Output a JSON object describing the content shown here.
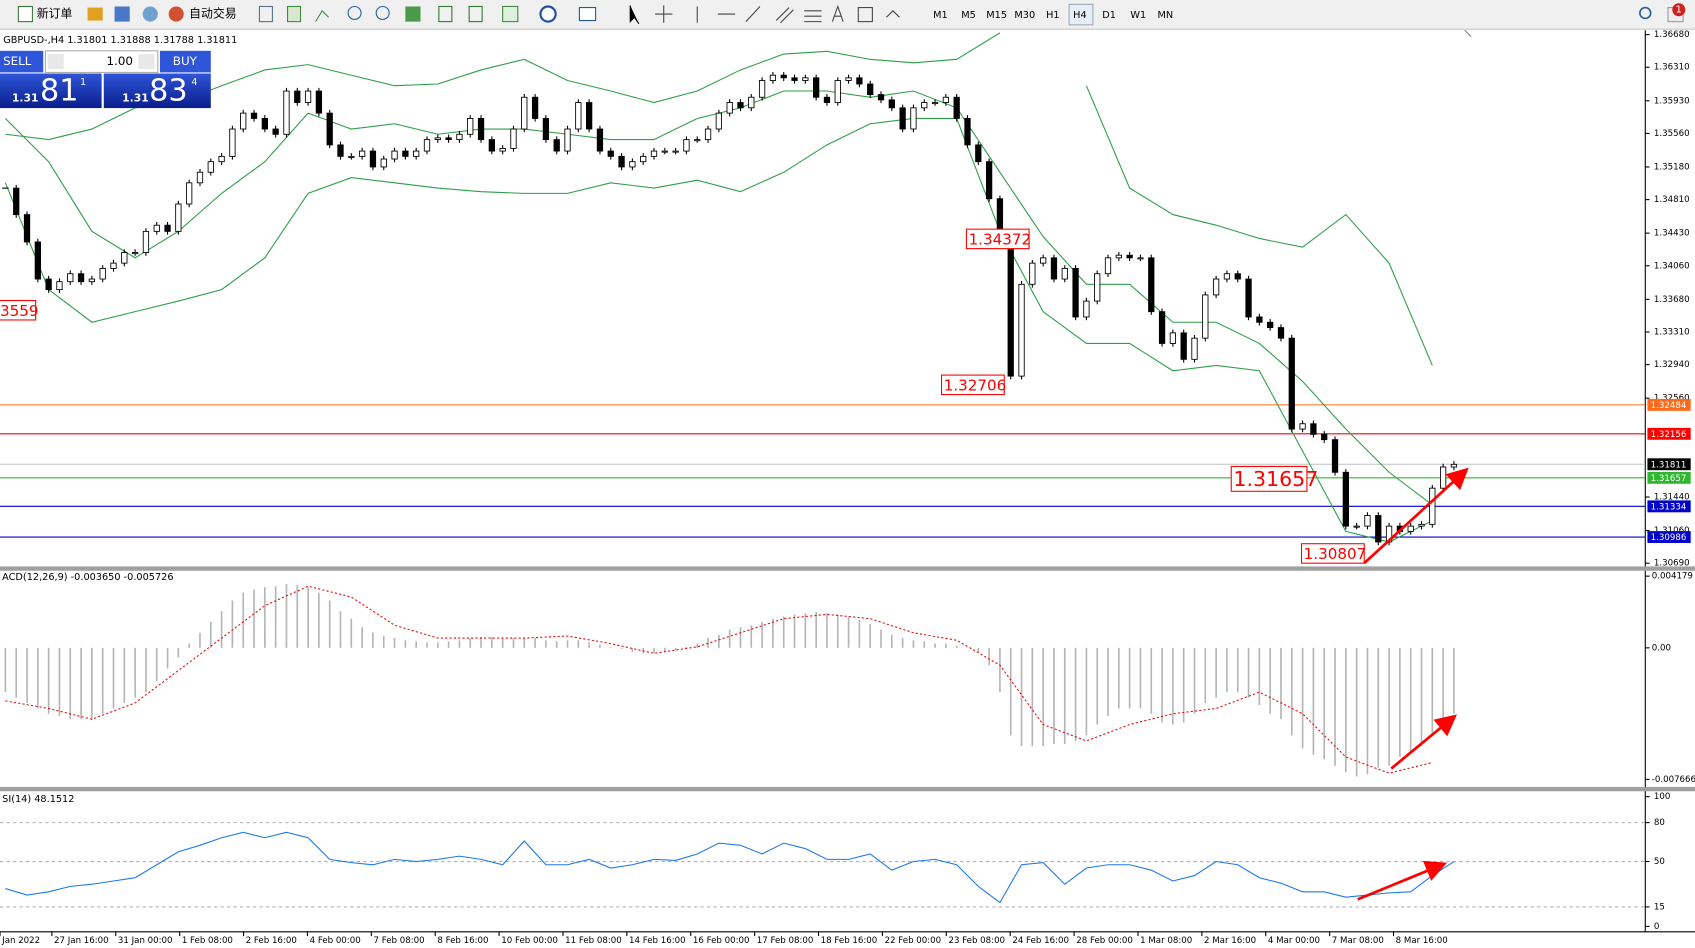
{
  "toolbar": {
    "new_order": "新订单",
    "auto_trade": "自动交易",
    "timeframes": [
      "M1",
      "M5",
      "M15",
      "M30",
      "H1",
      "H4",
      "D1",
      "W1",
      "MN"
    ],
    "notifications": "1"
  },
  "trade_panel": {
    "sell": "SELL",
    "buy": "BUY",
    "lot": "1.00",
    "bid_big": "1.31",
    "bid_pips": "81",
    "bid_point": "1",
    "ask_big": "1.31",
    "ask_pips": "83",
    "ask_point": "4"
  },
  "chart": {
    "type": "candlestick",
    "symbol_info": "GBPUSD-,H4  1.31801 1.31888 1.31788 1.31811",
    "ylim": [
      1.3069,
      1.3668
    ],
    "yticks": [
      "1.36680",
      "1.36310",
      "1.35930",
      "1.35560",
      "1.35180",
      "1.34810",
      "1.34430",
      "1.34060",
      "1.33680",
      "1.33310",
      "1.32940",
      "1.32560",
      "1.31440",
      "1.31060",
      "1.30690"
    ],
    "close": [
      1.3494,
      1.3464,
      1.3433,
      1.3391,
      1.3379,
      1.3388,
      1.3397,
      1.3388,
      1.3391,
      1.3403,
      1.3409,
      1.3421,
      1.3421,
      1.3445,
      1.3452,
      1.3445,
      1.3476,
      1.35,
      1.3512,
      1.3524,
      1.353,
      1.3561,
      1.3579,
      1.3573,
      1.3561,
      1.3555,
      1.3604,
      1.3591,
      1.3604,
      1.3579,
      1.3543,
      1.353,
      1.353,
      1.3536,
      1.3518,
      1.3527,
      1.3536,
      1.353,
      1.3536,
      1.3549,
      1.3551,
      1.3549,
      1.3555,
      1.3573,
      1.3549,
      1.3536,
      1.3539,
      1.3561,
      1.3597,
      1.3573,
      1.3549,
      1.3536,
      1.3561,
      1.3591,
      1.3561,
      1.3536,
      1.353,
      1.3518,
      1.3524,
      1.353,
      1.3536,
      1.3536,
      1.3536,
      1.3549,
      1.3549,
      1.3561,
      1.3579,
      1.3591,
      1.3585,
      1.3597,
      1.3616,
      1.3622,
      1.3619,
      1.3616,
      1.3619,
      1.3597,
      1.3591,
      1.3616,
      1.3619,
      1.3612,
      1.36,
      1.3594,
      1.3585,
      1.3561,
      1.3585,
      1.3591,
      1.3591,
      1.3597,
      1.3573,
      1.3543,
      1.3524,
      1.3482,
      1.3433,
      1.3281,
      1.3385,
      1.3409,
      1.3415,
      1.3391,
      1.3403,
      1.3348,
      1.3366,
      1.3397,
      1.3415,
      1.3418,
      1.3415,
      1.3415,
      1.3354,
      1.3318,
      1.333,
      1.33,
      1.3324,
      1.3373,
      1.3391,
      1.3397,
      1.3391,
      1.3348,
      1.3342,
      1.3336,
      1.3324,
      1.3221,
      1.3227,
      1.3215,
      1.3209,
      1.3172,
      1.3111,
      1.3111,
      1.3123,
      1.3093,
      1.3111,
      1.3105,
      1.3111,
      1.3113,
      1.3154,
      1.3178,
      1.3181
    ],
    "bollinger": {
      "color": "#2e9e48",
      "upper": [
        1.3555,
        1.3549,
        1.3561,
        1.3585,
        1.3591,
        1.361,
        1.3628,
        1.3634,
        1.3622,
        1.361,
        1.3612,
        1.3628,
        1.364,
        1.3616,
        1.3604,
        1.3591,
        1.3604,
        1.3628,
        1.3646,
        1.3649,
        1.364,
        1.3636,
        1.364,
        1.367,
        null,
        1.361,
        1.3494,
        1.3464,
        1.3452,
        1.3437,
        1.3427,
        1.3464,
        1.3409,
        1.3293
      ],
      "middle": [
        1.3573,
        1.3524,
        1.3445,
        1.3415,
        1.3445,
        1.3488,
        1.3524,
        1.3579,
        1.3561,
        1.3567,
        1.3555,
        1.3561,
        1.3561,
        1.3555,
        1.3549,
        1.3549,
        1.3573,
        1.3585,
        1.3604,
        1.3604,
        1.3597,
        1.3604,
        1.3585,
        1.3512,
        1.3439,
        1.3385,
        1.3385,
        1.3342,
        1.3342,
        1.3318,
        1.3275,
        1.3221,
        1.3172,
        1.3135
      ],
      "lower": [
        1.35,
        1.3379,
        1.3342,
        1.3354,
        1.3366,
        1.3379,
        1.3415,
        1.3488,
        1.3506,
        1.35,
        1.3494,
        1.349,
        1.3488,
        1.3488,
        1.35,
        1.3494,
        1.3503,
        1.349,
        1.3512,
        1.3543,
        1.3567,
        1.3573,
        1.3573,
        1.3445,
        1.3354,
        1.3318,
        1.3318,
        1.3287,
        1.3293,
        1.3287,
        1.3196,
        1.3105,
        1.3093,
        1.3117
      ]
    },
    "levels": [
      {
        "label": "1.32484",
        "color": "#ff6a1a"
      },
      {
        "label": "1.32156",
        "color": "#ff0000"
      },
      {
        "label": "1.31811",
        "color": "#000000"
      },
      {
        "label": "1.31657",
        "color": "#2fb82f"
      },
      {
        "label": "1.31334",
        "color": "#0000cc"
      },
      {
        "label": "1.30986",
        "color": "#0000cc"
      }
    ],
    "annotations": [
      "1.34372",
      "1.32706",
      "3559",
      "1.31657",
      "1.30807"
    ]
  },
  "macd": {
    "label": "ACD(12,26,9) -0.003650 -0.005726",
    "ylim": [
      -0.007666,
      0.004179
    ],
    "yticks": [
      "0.004179",
      "0.00",
      "-0.007666"
    ],
    "histogram": [
      -0.00258,
      -0.0029,
      -0.00321,
      -0.00353,
      -0.00384,
      -0.00397,
      -0.00416,
      -0.00416,
      -0.00416,
      -0.00384,
      -0.00353,
      -0.00321,
      -0.0029,
      -0.00258,
      -0.00195,
      -0.0012,
      -0.00057,
      0.00025,
      0.00088,
      0.00151,
      0.00214,
      0.00277,
      0.00321,
      0.0034,
      0.00353,
      0.00359,
      0.00372,
      0.00365,
      0.00353,
      0.00321,
      0.00277,
      0.00214,
      0.0017,
      0.0012,
      0.00088,
      0.00069,
      0.00057,
      0.00044,
      0.00038,
      0.00032,
      0.00032,
      0.00038,
      0.00044,
      0.00057,
      0.00063,
      0.00063,
      0.00057,
      0.00057,
      0.00057,
      0.00057,
      0.00044,
      0.00038,
      0.00044,
      0.00044,
      0.00032,
      0.00019,
      6e-05,
      -6e-05,
      -0.00025,
      -0.00032,
      -0.00032,
      -0.00025,
      -0.00013,
      6e-05,
      0.00025,
      0.00057,
      0.00076,
      0.00107,
      0.0012,
      0.00132,
      0.00151,
      0.0017,
      0.00183,
      0.00195,
      0.00202,
      0.00208,
      0.00202,
      0.00195,
      0.00183,
      0.00164,
      0.00139,
      0.00107,
      0.00076,
      0.00057,
      0.00044,
      0.00038,
      0.00025,
      0.00025,
      0.00013,
      0,
      -0.00025,
      -0.00101,
      -0.00258,
      -0.0051,
      -0.00573,
      -0.00573,
      -0.00573,
      -0.00561,
      -0.00561,
      -0.00542,
      -0.0051,
      -0.00447,
      -0.00397,
      -0.00353,
      -0.00353,
      -0.00353,
      -0.00384,
      -0.00435,
      -0.00447,
      -0.00435,
      -0.00384,
      -0.00321,
      -0.0029,
      -0.00258,
      -0.00258,
      -0.0029,
      -0.00334,
      -0.00384,
      -0.00416,
      -0.0051,
      -0.00586,
      -0.00624,
      -0.00649,
      -0.00687,
      -0.00725,
      -0.0075,
      -0.00737,
      -0.00699,
      -0.00687,
      -0.00636,
      -0.00605,
      -0.00573,
      -0.0051,
      -0.00416,
      -0.00384
    ],
    "signal": [
      -0.00309,
      -0.00353,
      -0.00416,
      -0.00321,
      -0.00132,
      0.00057,
      0.00246,
      0.00359,
      0.00296,
      0.00132,
      0.00057,
      0.00057,
      0.00057,
      0.00069,
      0.00025,
      -0.00032,
      6e-05,
      0.00088,
      0.0017,
      0.00195,
      0.0017,
      0.00088,
      0.00044,
      -0.00101,
      -0.00447,
      -0.00542,
      -0.00447,
      -0.00384,
      -0.00353,
      -0.00258,
      -0.00384,
      -0.00636,
      -0.00731,
      -0.00668
    ]
  },
  "rsi": {
    "label": "SI(14) 48.1512",
    "ylim": [
      0,
      100
    ],
    "yticks": [
      "100",
      "80",
      "50",
      "15",
      "0"
    ],
    "levels": [
      80,
      50,
      15
    ],
    "color": "#1e78e6",
    "values": [
      29.2,
      24.2,
      26.7,
      30.8,
      32.5,
      35.0,
      37.5,
      47.5,
      57.5,
      62.5,
      68.3,
      72.5,
      68.3,
      72.5,
      68.3,
      51.7,
      49.2,
      47.5,
      51.7,
      50.0,
      51.7,
      54.2,
      51.7,
      47.5,
      65.8,
      47.5,
      47.5,
      51.7,
      45.0,
      47.5,
      51.7,
      50.8,
      55.8,
      64.2,
      62.5,
      55.8,
      64.2,
      60.0,
      51.7,
      51.7,
      55.8,
      43.3,
      50.0,
      51.7,
      47.5,
      30.8,
      18.3,
      47.5,
      49.2,
      32.5,
      45.0,
      47.5,
      47.5,
      43.3,
      35.0,
      39.2,
      50.0,
      47.5,
      37.5,
      33.3,
      26.7,
      26.7,
      22.5,
      24.2,
      25.8,
      26.7,
      39.2,
      50.0
    ]
  },
  "time_axis": [
    "Jan 2022",
    "27 Jan 16:00",
    "31 Jan 00:00",
    "1 Feb 08:00",
    "2 Feb 16:00",
    "4 Feb 00:00",
    "7 Feb 08:00",
    "8 Feb 16:00",
    "10 Feb 00:00",
    "11 Feb 08:00",
    "14 Feb 16:00",
    "16 Feb 00:00",
    "17 Feb 08:00",
    "18 Feb 16:00",
    "22 Feb 00:00",
    "23 Feb 08:00",
    "24 Feb 16:00",
    "28 Feb 00:00",
    "1 Mar 08:00",
    "2 Mar 16:00",
    "4 Mar 00:00",
    "7 Mar 08:00",
    "8 Mar 16:00"
  ]
}
